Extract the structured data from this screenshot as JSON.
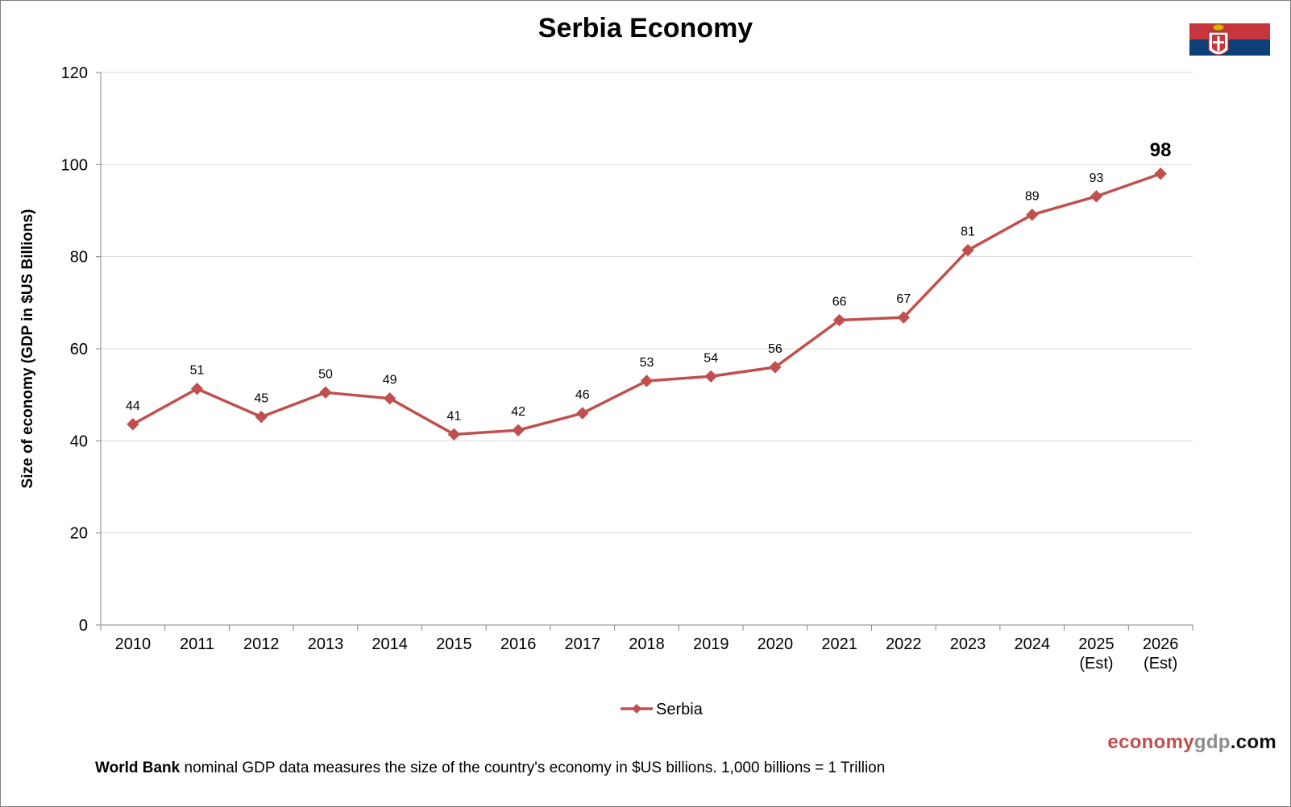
{
  "title": "Serbia Economy",
  "flag": {
    "colors": [
      "#c6363c",
      "#0c4076",
      "#ffffff"
    ]
  },
  "brand": {
    "part1": "economy",
    "part2": "gdp",
    "part3": ".com"
  },
  "footnote": {
    "bold": "World Bank",
    "text": " nominal GDP data  measures the size of the country's economy in $US billions.  1,000 billions = 1 Trillion"
  },
  "chart_data": {
    "type": "line",
    "title": "Serbia Economy",
    "ylabel": "Size of economy (GDP in $US Billions)",
    "xlabel": "",
    "ylim": [
      0,
      120
    ],
    "yticks": [
      0,
      20,
      40,
      60,
      80,
      100,
      120
    ],
    "grid": true,
    "legend": "bottom-center",
    "categories": [
      [
        "2010"
      ],
      [
        "2011"
      ],
      [
        "2012"
      ],
      [
        "2013"
      ],
      [
        "2014"
      ],
      [
        "2015"
      ],
      [
        "2016"
      ],
      [
        "2017"
      ],
      [
        "2018"
      ],
      [
        "2019"
      ],
      [
        "2020"
      ],
      [
        "2021"
      ],
      [
        "2022"
      ],
      [
        "2023"
      ],
      [
        "2024"
      ],
      [
        "2025",
        "(Est)"
      ],
      [
        "2026",
        "(Est)"
      ]
    ],
    "series": [
      {
        "name": "Serbia",
        "color": "#c0504d",
        "values": [
          43.6,
          51.3,
          45.2,
          50.5,
          49.2,
          41.4,
          42.3,
          46.0,
          53.0,
          54.0,
          56.0,
          66.2,
          66.8,
          81.4,
          89.1,
          93.1,
          98.0
        ],
        "labels": [
          "44",
          "51",
          "45",
          "50",
          "49",
          "41",
          "42",
          "46",
          "53",
          "54",
          "56",
          "66",
          "67",
          "81",
          "89",
          "93",
          "98"
        ]
      }
    ]
  }
}
